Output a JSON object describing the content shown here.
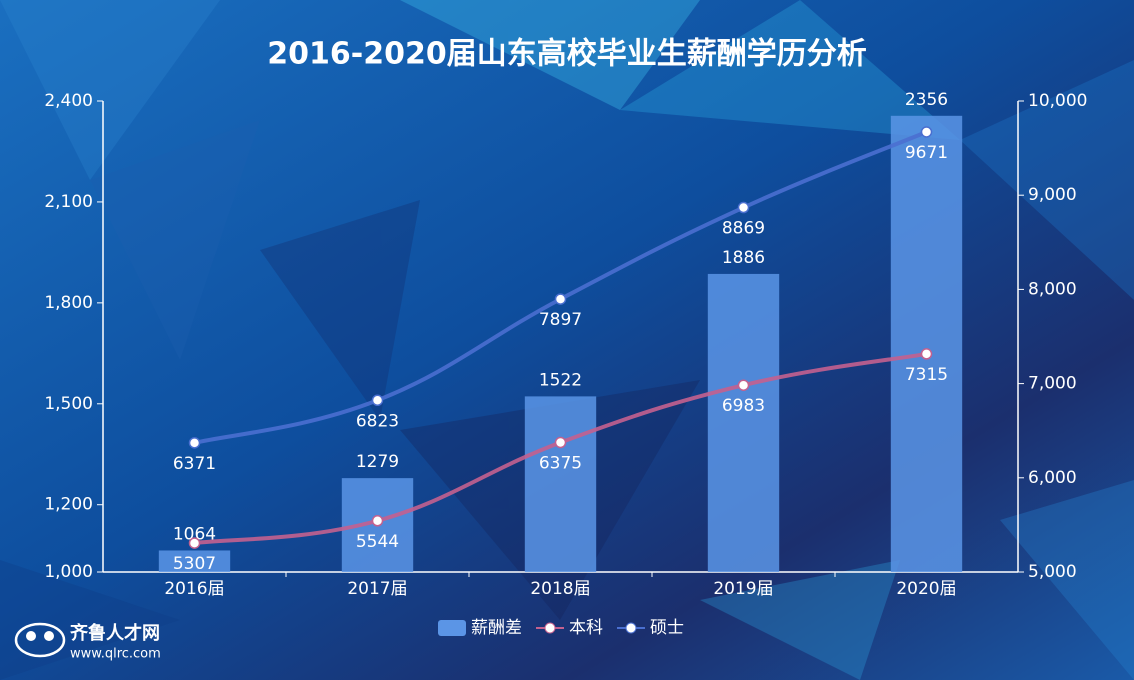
{
  "chart_data": {
    "type": "combo",
    "title": "2016-2020届山东高校毕业生薪酬学历分析",
    "categories": [
      "2016届",
      "2017届",
      "2018届",
      "2019届",
      "2020届"
    ],
    "series": [
      {
        "name": "薪酬差",
        "type": "bar",
        "color": "#5b95e6",
        "values": [
          1064,
          1279,
          1522,
          1886,
          2356
        ]
      },
      {
        "name": "本科",
        "type": "line",
        "axis": "y2",
        "color": "#c3618f",
        "values": [
          5307,
          5544,
          6375,
          6983,
          7315
        ]
      },
      {
        "name": "硕士",
        "type": "line",
        "axis": "y2",
        "color": "#4a6fd0",
        "values": [
          6371,
          6823,
          7897,
          8869,
          9671
        ]
      }
    ],
    "ylim": [
      1000,
      2400
    ],
    "yticks": [
      {
        "value": 1000,
        "label": "1,000"
      },
      {
        "value": 1200,
        "label": "1,200"
      },
      {
        "value": 1500,
        "label": "1,500"
      },
      {
        "value": 1800,
        "label": "1,800"
      },
      {
        "value": 2100,
        "label": "2,100"
      },
      {
        "value": 2400,
        "label": "2,400"
      }
    ],
    "y2lim": [
      5000,
      10000
    ],
    "y2ticks": [
      {
        "value": 5000,
        "label": "5,000"
      },
      {
        "value": 6000,
        "label": "6,000"
      },
      {
        "value": 7000,
        "label": "7,000"
      },
      {
        "value": 8000,
        "label": "8,000"
      },
      {
        "value": 9000,
        "label": "9,000"
      },
      {
        "value": 10000,
        "label": "10,000"
      }
    ],
    "legend": "bottom",
    "grid": false
  },
  "logo": {
    "name": "齐鲁人才网",
    "url": "www.qlrc.com"
  }
}
